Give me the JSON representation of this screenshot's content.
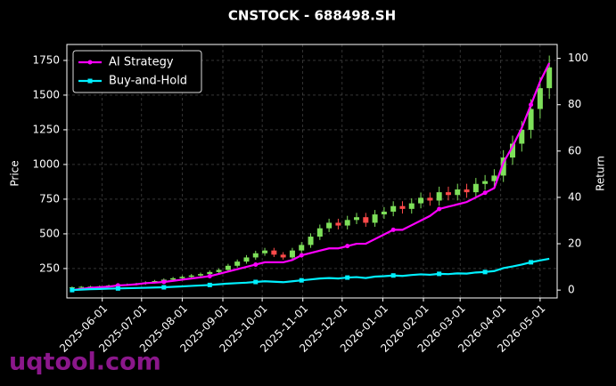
{
  "chart_data": {
    "type": "candlestick",
    "title": "CNSTOCK - 688498.SH",
    "ylabel": "Price",
    "y2label": "Return",
    "watermark": "uqtool.com",
    "x": [
      "2025-05-09",
      "2025-05-16",
      "2025-05-23",
      "2025-05-30",
      "2025-06-06",
      "2025-06-13",
      "2025-06-20",
      "2025-06-27",
      "2025-07-04",
      "2025-07-11",
      "2025-07-18",
      "2025-07-25",
      "2025-08-01",
      "2025-08-08",
      "2025-08-15",
      "2025-08-22",
      "2025-08-29",
      "2025-09-05",
      "2025-09-12",
      "2025-09-19",
      "2025-09-26",
      "2025-10-03",
      "2025-10-10",
      "2025-10-17",
      "2025-10-24",
      "2025-10-31",
      "2025-11-07",
      "2025-11-14",
      "2025-11-21",
      "2025-11-28",
      "2025-12-05",
      "2025-12-12",
      "2025-12-19",
      "2025-12-26",
      "2026-01-02",
      "2026-01-09",
      "2026-01-16",
      "2026-01-23",
      "2026-01-30",
      "2026-02-06",
      "2026-02-13",
      "2026-02-20",
      "2026-02-27",
      "2026-03-06",
      "2026-03-13",
      "2026-03-20",
      "2026-03-27",
      "2026-04-03",
      "2026-04-10",
      "2026-04-17",
      "2026-04-24",
      "2026-05-01",
      "2026-05-08"
    ],
    "open": [
      112,
      115,
      118,
      120,
      122,
      128,
      132,
      135,
      140,
      150,
      160,
      170,
      180,
      190,
      200,
      210,
      225,
      240,
      270,
      300,
      330,
      360,
      380,
      350,
      330,
      380,
      420,
      480,
      540,
      580,
      560,
      600,
      620,
      580,
      640,
      660,
      700,
      680,
      720,
      760,
      740,
      800,
      780,
      820,
      800,
      860,
      880,
      920,
      1050,
      1150,
      1250,
      1400,
      1550
    ],
    "high": [
      121,
      124,
      126,
      128,
      134,
      139,
      142,
      147,
      158,
      168,
      179,
      189,
      200,
      210,
      221,
      236,
      252,
      284,
      315,
      347,
      378,
      399,
      399,
      368,
      399,
      441,
      504,
      567,
      609,
      609,
      630,
      651,
      651,
      672,
      693,
      735,
      735,
      756,
      798,
      798,
      840,
      840,
      861,
      861,
      903,
      924,
      966,
      1103,
      1208,
      1313,
      1470,
      1628,
      1785
    ],
    "low": [
      106,
      109,
      112,
      114,
      116,
      122,
      125,
      128,
      133,
      143,
      152,
      162,
      171,
      181,
      190,
      200,
      214,
      228,
      257,
      285,
      314,
      342,
      333,
      314,
      314,
      361,
      399,
      456,
      513,
      532,
      532,
      570,
      551,
      551,
      608,
      627,
      646,
      646,
      684,
      703,
      703,
      741,
      741,
      760,
      760,
      817,
      836,
      874,
      998,
      1093,
      1188,
      1330,
      1473
    ],
    "close": [
      115,
      118,
      120,
      122,
      128,
      132,
      135,
      140,
      150,
      160,
      170,
      180,
      190,
      200,
      210,
      225,
      240,
      270,
      300,
      330,
      360,
      380,
      350,
      330,
      380,
      420,
      480,
      540,
      580,
      560,
      600,
      620,
      580,
      640,
      660,
      700,
      680,
      720,
      760,
      740,
      800,
      780,
      820,
      800,
      860,
      880,
      920,
      1050,
      1150,
      1250,
      1400,
      1550,
      1700
    ],
    "up_color": "#7ee05a",
    "down_color": "#ff4a4a",
    "series": [
      {
        "name": "AI Strategy",
        "color": "#ff00ff",
        "axis": "y2",
        "marker": "circle",
        "values": [
          0,
          0.5,
          1,
          1.2,
          1.5,
          2,
          2.2,
          2.5,
          3,
          3.2,
          3.5,
          4,
          4.5,
          5,
          5.5,
          6,
          7,
          8,
          9,
          10,
          11,
          12,
          12,
          12,
          13,
          15,
          16,
          17,
          18,
          18,
          19,
          20,
          20,
          22,
          24,
          26,
          26,
          28,
          30,
          32,
          35,
          36,
          37,
          38,
          40,
          42,
          44,
          55,
          62,
          70,
          80,
          90,
          98
        ]
      },
      {
        "name": "Buy-and-Hold",
        "color": "#00f0ff",
        "axis": "y2",
        "marker": "square",
        "values": [
          0,
          0.2,
          0.4,
          0.5,
          0.6,
          0.7,
          0.8,
          0.9,
          1,
          1.1,
          1.2,
          1.4,
          1.6,
          1.8,
          2,
          2.2,
          2.5,
          2.8,
          3,
          3.2,
          3.5,
          3.8,
          3.6,
          3.4,
          3.8,
          4.2,
          4.6,
          5,
          5.2,
          5,
          5.4,
          5.6,
          5.2,
          5.8,
          6,
          6.3,
          6.1,
          6.5,
          6.8,
          6.6,
          7,
          6.9,
          7.2,
          7.1,
          7.6,
          7.8,
          8.2,
          9.5,
          10.2,
          11,
          12,
          12.8,
          13.5
        ]
      }
    ],
    "xlim": [
      "2025-05-05",
      "2026-05-14"
    ],
    "xticks": [
      "2025-06-01",
      "2025-07-01",
      "2025-08-01",
      "2025-09-01",
      "2025-10-01",
      "2025-11-01",
      "2025-12-01",
      "2026-01-01",
      "2026-02-01",
      "2026-03-01",
      "2026-04-01",
      "2026-05-01"
    ],
    "ylim": [
      38,
      1865
    ],
    "yticks": [
      250,
      500,
      750,
      1000,
      1250,
      1500,
      1750
    ],
    "y2lim": [
      -3.4,
      106
    ],
    "y2ticks": [
      0,
      20,
      40,
      60,
      80,
      100
    ],
    "grid": true,
    "legend": "upper left"
  }
}
